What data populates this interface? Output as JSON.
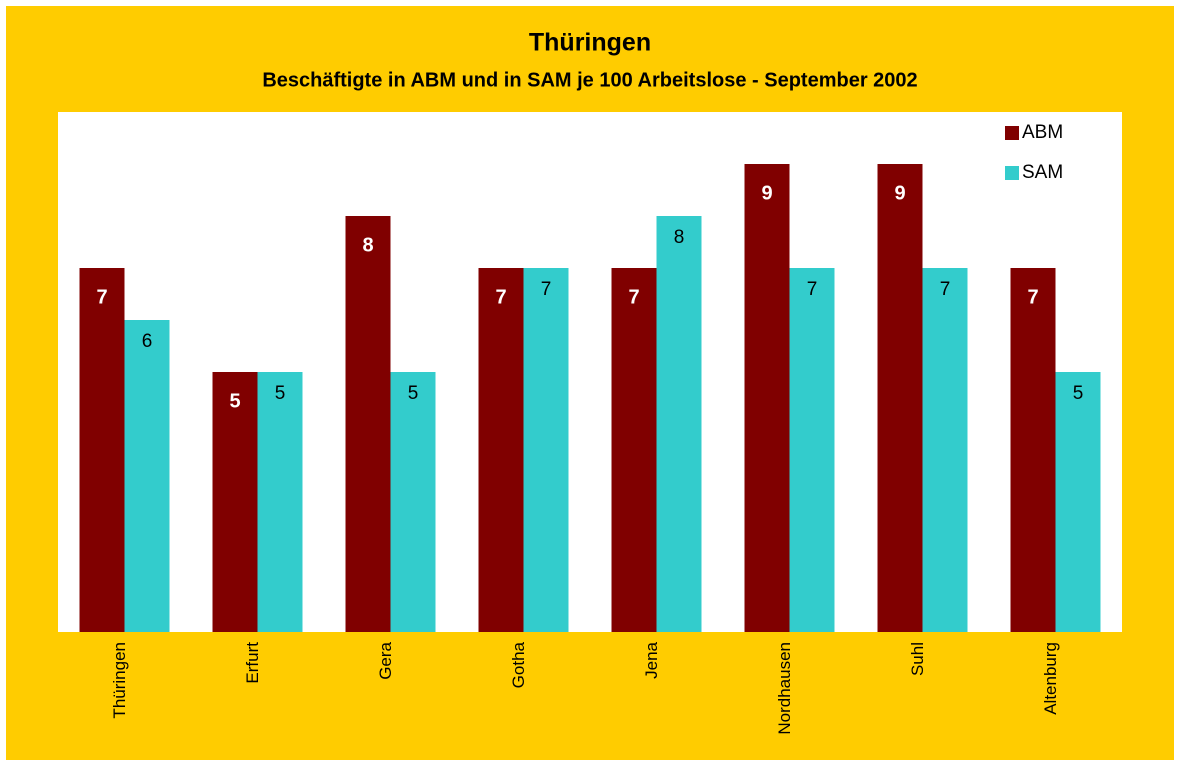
{
  "chart_data": {
    "type": "bar",
    "title": "Thüringen",
    "subtitle": "Beschäftigte in ABM und in SAM je 100 Arbeitslose  - September 2002",
    "categories": [
      "Thüringen",
      "Erfurt",
      "Gera",
      "Gotha",
      "Jena",
      "Nordhausen",
      "Suhl",
      "Altenburg"
    ],
    "series": [
      {
        "name": "ABM",
        "color": "#800000",
        "values": [
          7,
          5,
          8,
          7,
          7,
          9,
          9,
          7
        ]
      },
      {
        "name": "SAM",
        "color": "#33CCCC",
        "values": [
          6,
          5,
          5,
          7,
          8,
          7,
          7,
          5
        ]
      }
    ],
    "ylim": [
      0,
      10
    ],
    "legend": "top-right"
  }
}
